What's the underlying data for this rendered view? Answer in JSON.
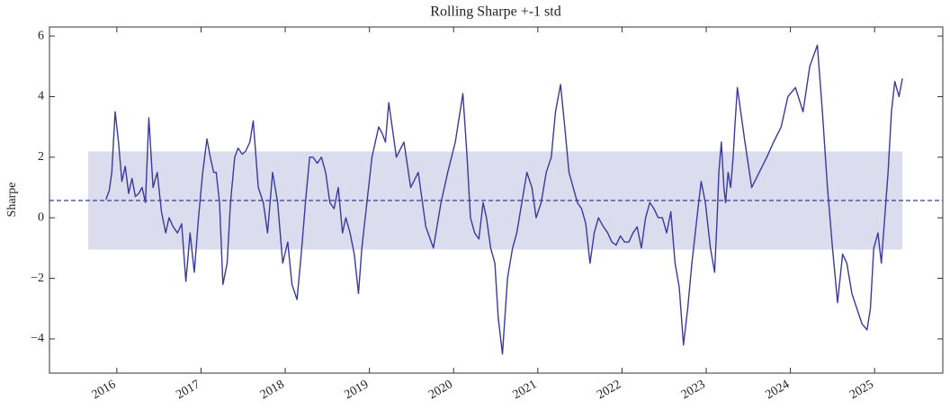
{
  "chart_data": {
    "type": "line",
    "title": "Rolling Sharpe +-1 std",
    "ylabel": "Sharpe",
    "xlim": [
      2015.2,
      2025.81
    ],
    "ylim": [
      -5.13,
      6.3
    ],
    "xticks": [
      2016,
      2017,
      2018,
      2019,
      2020,
      2021,
      2022,
      2023,
      2024,
      2025
    ],
    "yticks": [
      {
        "value": -4,
        "label": "−4"
      },
      {
        "value": -2,
        "label": "−2"
      },
      0,
      2,
      4,
      6
    ],
    "mean": 0.57,
    "std": 1.62,
    "band_xlim": [
      2015.66,
      2025.33
    ],
    "band_color": "#dcdcef",
    "mean_color": "#3a3a9c",
    "series": [
      {
        "color": "#3a3a9c",
        "x": [
          2015.87,
          2015.91,
          2015.94,
          2015.98,
          2016.02,
          2016.06,
          2016.1,
          2016.14,
          2016.18,
          2016.22,
          2016.26,
          2016.3,
          2016.34,
          2016.38,
          2016.43,
          2016.48,
          2016.53,
          2016.58,
          2016.62,
          2016.67,
          2016.72,
          2016.77,
          2016.82,
          2016.87,
          2016.92,
          2016.97,
          2017.02,
          2017.07,
          2017.11,
          2017.15,
          2017.18,
          2017.22,
          2017.26,
          2017.31,
          2017.35,
          2017.4,
          2017.44,
          2017.49,
          2017.53,
          2017.58,
          2017.62,
          2017.68,
          2017.74,
          2017.79,
          2017.85,
          2017.91,
          2017.97,
          2018.03,
          2018.08,
          2018.14,
          2018.19,
          2018.24,
          2018.29,
          2018.33,
          2018.38,
          2018.43,
          2018.48,
          2018.53,
          2018.58,
          2018.63,
          2018.68,
          2018.72,
          2018.77,
          2018.82,
          2018.87,
          2018.91,
          2018.95,
          2018.99,
          2019.03,
          2019.07,
          2019.11,
          2019.15,
          2019.19,
          2019.23,
          2019.32,
          2019.41,
          2019.49,
          2019.58,
          2019.67,
          2019.76,
          2019.85,
          2019.93,
          2020.02,
          2020.11,
          2020.16,
          2020.2,
          2020.25,
          2020.3,
          2020.35,
          2020.39,
          2020.44,
          2020.49,
          2020.53,
          2020.58,
          2020.64,
          2020.7,
          2020.75,
          2020.81,
          2020.87,
          2020.93,
          2020.98,
          2021.04,
          2021.1,
          2021.16,
          2021.21,
          2021.27,
          2021.32,
          2021.37,
          2021.42,
          2021.47,
          2021.52,
          2021.57,
          2021.62,
          2021.67,
          2021.72,
          2021.78,
          2021.83,
          2021.88,
          2021.93,
          2021.98,
          2022.03,
          2022.08,
          2022.13,
          2022.18,
          2022.23,
          2022.28,
          2022.33,
          2022.38,
          2022.43,
          2022.48,
          2022.53,
          2022.58,
          2022.63,
          2022.68,
          2022.73,
          2022.78,
          2022.83,
          2022.89,
          2022.94,
          2022.99,
          2023.05,
          2023.1,
          2023.13,
          2023.15,
          2023.18,
          2023.21,
          2023.23,
          2023.26,
          2023.29,
          2023.32,
          2023.34,
          2023.37,
          2023.46,
          2023.54,
          2023.63,
          2023.72,
          2023.8,
          2023.89,
          2023.97,
          2024.06,
          2024.15,
          2024.23,
          2024.32,
          2024.38,
          2024.44,
          2024.5,
          2024.56,
          2024.62,
          2024.67,
          2024.73,
          2024.79,
          2024.85,
          2024.91,
          2024.95,
          2024.99,
          2025.04,
          2025.08,
          2025.12,
          2025.16,
          2025.2,
          2025.24,
          2025.29,
          2025.33
        ],
        "values": [
          0.6,
          0.9,
          1.5,
          3.5,
          2.5,
          1.2,
          1.7,
          0.8,
          1.3,
          0.7,
          0.8,
          1.0,
          0.5,
          3.3,
          1.0,
          1.5,
          0.2,
          -0.5,
          0.0,
          -0.3,
          -0.5,
          -0.2,
          -2.1,
          -0.5,
          -1.8,
          0.0,
          1.5,
          2.6,
          2.0,
          1.5,
          1.5,
          0.5,
          -2.2,
          -1.5,
          0.5,
          2.0,
          2.3,
          2.1,
          2.2,
          2.5,
          3.2,
          1.0,
          0.5,
          -0.5,
          1.5,
          0.5,
          -1.5,
          -0.8,
          -2.2,
          -2.7,
          -1.2,
          0.5,
          2.0,
          2.0,
          1.8,
          2.0,
          1.5,
          0.5,
          0.3,
          1.0,
          -0.5,
          0.0,
          -0.5,
          -1.2,
          -2.5,
          -1.0,
          0.0,
          1.0,
          2.0,
          2.5,
          3.0,
          2.8,
          2.5,
          3.8,
          2.0,
          2.5,
          1.0,
          1.5,
          -0.3,
          -1.0,
          0.5,
          1.5,
          2.5,
          4.1,
          2.0,
          0.0,
          -0.5,
          -0.7,
          0.5,
          0.0,
          -1.0,
          -1.5,
          -3.3,
          -4.5,
          -2.0,
          -1.0,
          -0.5,
          0.5,
          1.5,
          1.0,
          0.0,
          0.5,
          1.5,
          2.0,
          3.5,
          4.4,
          3.0,
          1.5,
          1.0,
          0.5,
          0.3,
          -0.2,
          -1.5,
          -0.5,
          0.0,
          -0.3,
          -0.5,
          -0.8,
          -0.9,
          -0.6,
          -0.8,
          -0.8,
          -0.5,
          -0.3,
          -1.0,
          0.0,
          0.5,
          0.3,
          0.0,
          0.0,
          -0.5,
          0.2,
          -1.5,
          -2.3,
          -4.2,
          -3.0,
          -1.5,
          0.0,
          1.2,
          0.5,
          -1.0,
          -1.8,
          0.0,
          1.5,
          2.5,
          1.0,
          0.5,
          1.5,
          1.0,
          2.0,
          3.0,
          4.3,
          2.5,
          1.0,
          1.5,
          2.0,
          2.5,
          3.0,
          4.0,
          4.3,
          3.5,
          5.0,
          5.7,
          3.5,
          1.0,
          -1.0,
          -2.8,
          -1.2,
          -1.5,
          -2.5,
          -3.0,
          -3.5,
          -3.7,
          -3.0,
          -1.0,
          -0.5,
          -1.5,
          0.0,
          1.5,
          3.5,
          4.5,
          4.0,
          4.6
        ]
      }
    ]
  }
}
